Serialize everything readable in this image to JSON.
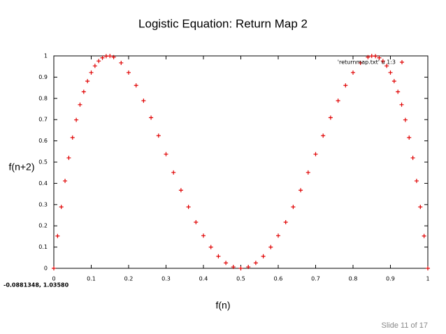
{
  "chart_data": {
    "type": "scatter",
    "title": "Logistic Equation: Return Map 2",
    "x_label": "f(n)",
    "y_label": "f(n+2)",
    "coordinates": "-0.0881348,  1.03580",
    "slide_number": "Slide 11 of 17",
    "x": [
      0,
      0.01,
      0.02,
      0.03,
      0.04,
      0.05,
      0.06,
      0.07,
      0.08,
      0.09,
      0.1,
      0.11,
      0.12,
      0.13,
      0.14,
      0.15,
      0.16,
      0.18,
      0.2,
      0.22,
      0.24,
      0.26,
      0.28,
      0.3,
      0.32,
      0.34,
      0.36,
      0.38,
      0.4,
      0.42,
      0.44,
      0.46,
      0.48,
      0.5,
      0.52,
      0.54,
      0.56,
      0.58,
      0.6,
      0.62,
      0.64,
      0.66,
      0.68,
      0.7,
      0.72,
      0.74,
      0.76,
      0.78,
      0.8,
      0.82,
      0.84,
      0.85,
      0.86,
      0.87,
      0.88,
      0.89,
      0.9,
      0.91,
      0.92,
      0.93,
      0.94,
      0.95,
      0.96,
      0.97,
      0.98,
      0.99,
      1
    ],
    "series": [
      {
        "name": "'returnmap.txt' u 1:3",
        "color": "#e00000",
        "values": [
          0,
          0.1521,
          0.289,
          0.4114,
          0.52,
          0.6156,
          0.6988,
          0.7704,
          0.8309,
          0.8811,
          0.9216,
          0.953,
          0.9759,
          0.9909,
          0.9987,
          0.9996,
          0.9943,
          0.9673,
          0.9216,
          0.861,
          0.7891,
          0.7093,
          0.6245,
          0.5376,
          0.4512,
          0.3677,
          0.289,
          0.2171,
          0.1536,
          0.0998,
          0.0568,
          0.0254,
          0.0064,
          0,
          0.0064,
          0.0254,
          0.0568,
          0.0998,
          0.1536,
          0.2171,
          0.289,
          0.3677,
          0.4512,
          0.5376,
          0.6245,
          0.7093,
          0.7891,
          0.861,
          0.9216,
          0.9673,
          0.9943,
          0.9996,
          0.9987,
          0.9909,
          0.9759,
          0.953,
          0.9216,
          0.8811,
          0.8309,
          0.7704,
          0.6988,
          0.6156,
          0.52,
          0.4114,
          0.289,
          0.1521,
          0
        ]
      }
    ],
    "xlim": [
      0,
      1
    ],
    "ylim": [
      0,
      1
    ],
    "xticks": [
      0,
      0.1,
      0.2,
      0.3,
      0.4,
      0.5,
      0.6,
      0.7,
      0.8,
      0.9,
      1
    ],
    "yticks": [
      0,
      0.1,
      0.2,
      0.3,
      0.4,
      0.5,
      0.6,
      0.7,
      0.8,
      0.9,
      1
    ],
    "legend_position": "top-right"
  }
}
